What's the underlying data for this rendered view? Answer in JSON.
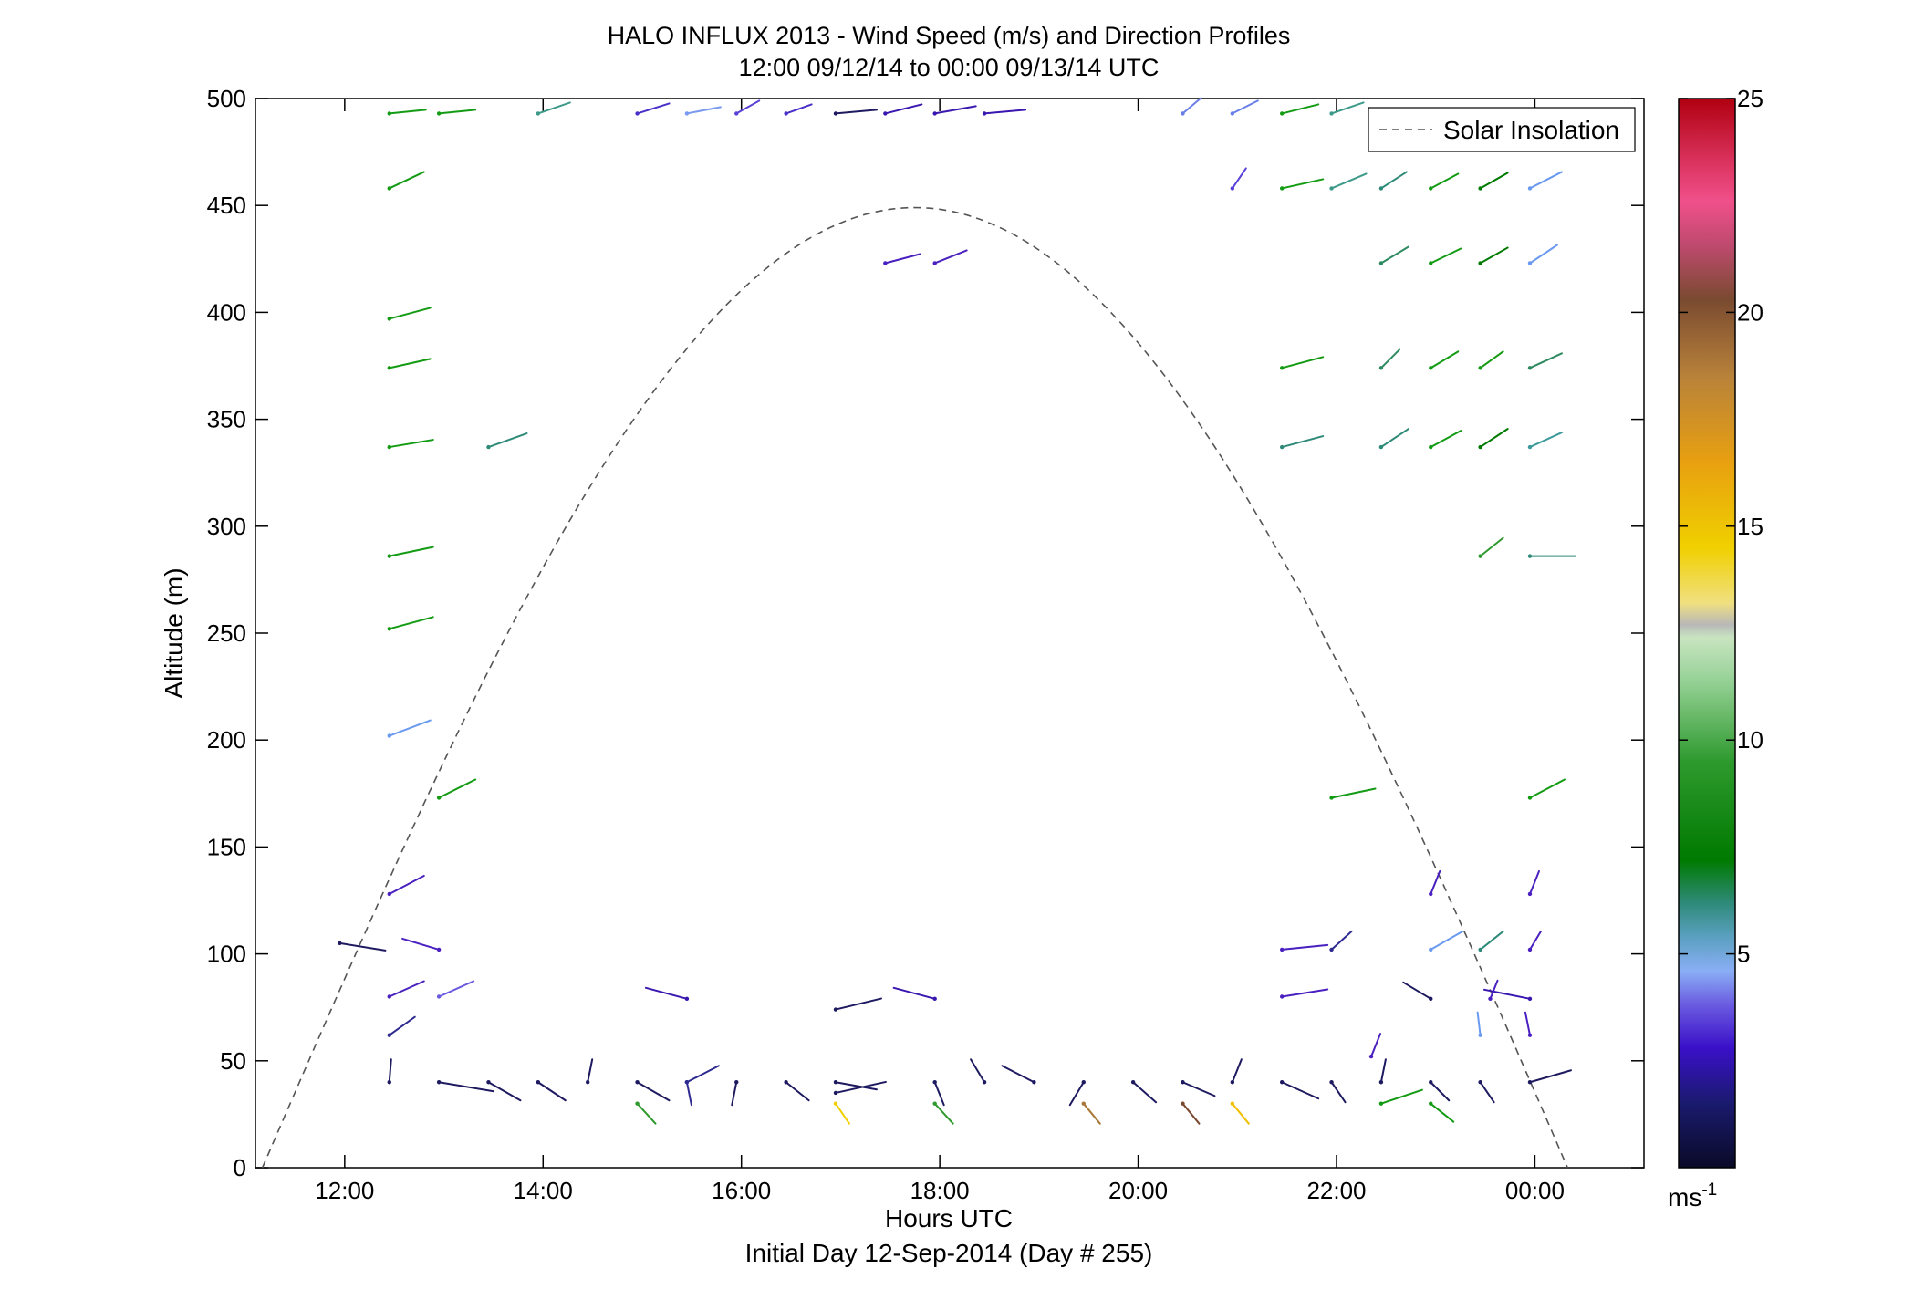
{
  "chart_data": {
    "type": "wind_barb_profile",
    "title": "HALO INFLUX 2013 - Wind Speed (m/s) and Direction Profiles",
    "subtitle": "12:00 09/12/14 to 00:00 09/13/14  UTC",
    "xlabel": "Hours UTC",
    "xlabel2": "Initial Day 12-Sep-2014 (Day # 255)",
    "ylabel": "Altitude (m)",
    "xlim": [
      11.1,
      25.1
    ],
    "ylim": [
      0,
      500
    ],
    "x_ticks": [
      {
        "value": 12,
        "label": "12:00"
      },
      {
        "value": 14,
        "label": "14:00"
      },
      {
        "value": 16,
        "label": "16:00"
      },
      {
        "value": 18,
        "label": "18:00"
      },
      {
        "value": 20,
        "label": "20:00"
      },
      {
        "value": 22,
        "label": "22:00"
      },
      {
        "value": 24,
        "label": "00:00"
      }
    ],
    "y_ticks": [
      {
        "value": 0,
        "label": "0"
      },
      {
        "value": 50,
        "label": "50"
      },
      {
        "value": 100,
        "label": "100"
      },
      {
        "value": 150,
        "label": "150"
      },
      {
        "value": 200,
        "label": "200"
      },
      {
        "value": 250,
        "label": "250"
      },
      {
        "value": 300,
        "label": "300"
      },
      {
        "value": 350,
        "label": "350"
      },
      {
        "value": 400,
        "label": "400"
      },
      {
        "value": 450,
        "label": "450"
      },
      {
        "value": 500,
        "label": "500"
      }
    ],
    "legend": {
      "label": "Solar Insolation",
      "position": "top-right"
    },
    "solar_insolation": {
      "start_hour": 11.17,
      "end_hour": 24.33,
      "peak_altitude": 449,
      "style": "dashed",
      "color": "#555555"
    },
    "colorbar": {
      "min": 0,
      "max": 25,
      "ticks": [
        {
          "value": 5,
          "label": "5"
        },
        {
          "value": 10,
          "label": "10"
        },
        {
          "value": 15,
          "label": "15"
        },
        {
          "value": 20,
          "label": "20"
        },
        {
          "value": 25,
          "label": "25"
        }
      ],
      "unit_label": "ms",
      "unit_exponent": "-1",
      "stops": [
        {
          "v": 0,
          "c": "#0a0a28"
        },
        {
          "v": 1.5,
          "c": "#1a1a6e"
        },
        {
          "v": 2.8,
          "c": "#3a10c8"
        },
        {
          "v": 3.8,
          "c": "#6a5ae0"
        },
        {
          "v": 4.6,
          "c": "#8aaef5"
        },
        {
          "v": 5.4,
          "c": "#5aa0c0"
        },
        {
          "v": 6.2,
          "c": "#2e8a78"
        },
        {
          "v": 7.2,
          "c": "#007a00"
        },
        {
          "v": 9.5,
          "c": "#2e9a2e"
        },
        {
          "v": 11.5,
          "c": "#9cd49c"
        },
        {
          "v": 12.4,
          "c": "#c8e4c0"
        },
        {
          "v": 12.7,
          "c": "#b8b8b8"
        },
        {
          "v": 13.2,
          "c": "#f0e080"
        },
        {
          "v": 14.5,
          "c": "#f0d000"
        },
        {
          "v": 16.5,
          "c": "#e8a010"
        },
        {
          "v": 18.5,
          "c": "#b8823a"
        },
        {
          "v": 20.3,
          "c": "#7a4a30"
        },
        {
          "v": 21.6,
          "c": "#c04a70"
        },
        {
          "v": 22.6,
          "c": "#f0508a"
        },
        {
          "v": 23.6,
          "c": "#d8305a"
        },
        {
          "v": 25,
          "c": "#b00010"
        }
      ]
    },
    "barbs": [
      {
        "t": 12.45,
        "alt": 493,
        "dx": 40,
        "dy": -4,
        "c": "#139b13"
      },
      {
        "t": 12.95,
        "alt": 493,
        "dx": 40,
        "dy": -4,
        "c": "#139b13"
      },
      {
        "t": 13.95,
        "alt": 493,
        "dx": 35,
        "dy": -12,
        "c": "#3d9a8a"
      },
      {
        "t": 14.95,
        "alt": 493,
        "dx": 35,
        "dy": -11,
        "c": "#4a30c8"
      },
      {
        "t": 15.45,
        "alt": 493,
        "dx": 37,
        "dy": -7,
        "c": "#7a9af0"
      },
      {
        "t": 15.95,
        "alt": 493,
        "dx": 25,
        "dy": -14,
        "c": "#5a40d8"
      },
      {
        "t": 16.45,
        "alt": 493,
        "dx": 28,
        "dy": -10,
        "c": "#4a30c8"
      },
      {
        "t": 16.95,
        "alt": 493,
        "dx": 45,
        "dy": -4,
        "c": "#1e1a60"
      },
      {
        "t": 17.45,
        "alt": 493,
        "dx": 40,
        "dy": -10,
        "c": "#3a18b0"
      },
      {
        "t": 17.95,
        "alt": 493,
        "dx": 45,
        "dy": -8,
        "c": "#3a18b0"
      },
      {
        "t": 18.45,
        "alt": 493,
        "dx": 45,
        "dy": -4,
        "c": "#3a18b0"
      },
      {
        "t": 20.45,
        "alt": 493,
        "dx": 20,
        "dy": -17,
        "c": "#6a7ee8"
      },
      {
        "t": 20.95,
        "alt": 493,
        "dx": 28,
        "dy": -14,
        "c": "#6a7ee8"
      },
      {
        "t": 21.45,
        "alt": 493,
        "dx": 40,
        "dy": -10,
        "c": "#139b13"
      },
      {
        "t": 21.95,
        "alt": 493,
        "dx": 35,
        "dy": -12,
        "c": "#3d9a8a"
      },
      {
        "t": 12.45,
        "alt": 458,
        "dx": 38,
        "dy": -18,
        "c": "#139b13"
      },
      {
        "t": 20.95,
        "alt": 458,
        "dx": 15,
        "dy": -22,
        "c": "#5a40d8"
      },
      {
        "t": 21.45,
        "alt": 458,
        "dx": 45,
        "dy": -10,
        "c": "#139b13"
      },
      {
        "t": 21.95,
        "alt": 458,
        "dx": 38,
        "dy": -16,
        "c": "#3d9a8a"
      },
      {
        "t": 22.45,
        "alt": 458,
        "dx": 28,
        "dy": -18,
        "c": "#2e8a78"
      },
      {
        "t": 22.95,
        "alt": 458,
        "dx": 30,
        "dy": -16,
        "c": "#139b13"
      },
      {
        "t": 23.45,
        "alt": 458,
        "dx": 30,
        "dy": -17,
        "c": "#007a00"
      },
      {
        "t": 23.95,
        "alt": 458,
        "dx": 35,
        "dy": -18,
        "c": "#6a9af0"
      },
      {
        "t": 17.45,
        "alt": 423,
        "dx": 38,
        "dy": -10,
        "c": "#4a20c0"
      },
      {
        "t": 17.95,
        "alt": 423,
        "dx": 35,
        "dy": -14,
        "c": "#4a20c0"
      },
      {
        "t": 22.45,
        "alt": 423,
        "dx": 30,
        "dy": -18,
        "c": "#2e8a60"
      },
      {
        "t": 22.95,
        "alt": 423,
        "dx": 33,
        "dy": -16,
        "c": "#139b13"
      },
      {
        "t": 23.45,
        "alt": 423,
        "dx": 30,
        "dy": -17,
        "c": "#007a00"
      },
      {
        "t": 23.95,
        "alt": 423,
        "dx": 30,
        "dy": -20,
        "c": "#6a9af0"
      },
      {
        "t": 12.45,
        "alt": 397,
        "dx": 45,
        "dy": -12,
        "c": "#139b13"
      },
      {
        "t": 12.45,
        "alt": 374,
        "dx": 45,
        "dy": -10,
        "c": "#139b13"
      },
      {
        "t": 21.45,
        "alt": 374,
        "dx": 45,
        "dy": -12,
        "c": "#139b13"
      },
      {
        "t": 22.45,
        "alt": 374,
        "dx": 20,
        "dy": -20,
        "c": "#2e8a60"
      },
      {
        "t": 22.95,
        "alt": 374,
        "dx": 30,
        "dy": -18,
        "c": "#139b13"
      },
      {
        "t": 23.45,
        "alt": 374,
        "dx": 25,
        "dy": -18,
        "c": "#139b13"
      },
      {
        "t": 23.95,
        "alt": 374,
        "dx": 35,
        "dy": -16,
        "c": "#2e8a60"
      },
      {
        "t": 12.45,
        "alt": 337,
        "dx": 48,
        "dy": -8,
        "c": "#139b13"
      },
      {
        "t": 13.45,
        "alt": 337,
        "dx": 42,
        "dy": -15,
        "c": "#2e8a78"
      },
      {
        "t": 21.45,
        "alt": 337,
        "dx": 45,
        "dy": -12,
        "c": "#2e8a78"
      },
      {
        "t": 22.45,
        "alt": 337,
        "dx": 30,
        "dy": -20,
        "c": "#2e8a78"
      },
      {
        "t": 22.95,
        "alt": 337,
        "dx": 33,
        "dy": -18,
        "c": "#139b13"
      },
      {
        "t": 23.45,
        "alt": 337,
        "dx": 30,
        "dy": -20,
        "c": "#007a00"
      },
      {
        "t": 23.95,
        "alt": 337,
        "dx": 35,
        "dy": -16,
        "c": "#3d9a9a"
      },
      {
        "t": 12.45,
        "alt": 286,
        "dx": 48,
        "dy": -10,
        "c": "#139b13"
      },
      {
        "t": 23.45,
        "alt": 286,
        "dx": 25,
        "dy": -20,
        "c": "#2e9a2e"
      },
      {
        "t": 23.95,
        "alt": 286,
        "dx": 50,
        "dy": 0,
        "c": "#2e8a78"
      },
      {
        "t": 12.45,
        "alt": 252,
        "dx": 48,
        "dy": -13,
        "c": "#139b13"
      },
      {
        "t": 12.45,
        "alt": 202,
        "dx": 45,
        "dy": -17,
        "c": "#6a9af0"
      },
      {
        "t": 12.95,
        "alt": 173,
        "dx": 40,
        "dy": -20,
        "c": "#139b13"
      },
      {
        "t": 21.95,
        "alt": 173,
        "dx": 48,
        "dy": -10,
        "c": "#139b13"
      },
      {
        "t": 23.95,
        "alt": 173,
        "dx": 38,
        "dy": -20,
        "c": "#139b13"
      },
      {
        "t": 12.45,
        "alt": 128,
        "dx": 38,
        "dy": -20,
        "c": "#4a20c0"
      },
      {
        "t": 22.95,
        "alt": 128,
        "dx": 10,
        "dy": -25,
        "c": "#4a20c0"
      },
      {
        "t": 23.95,
        "alt": 128,
        "dx": 10,
        "dy": -25,
        "c": "#4a20c0"
      },
      {
        "t": 11.95,
        "alt": 105,
        "dx": 50,
        "dy": 8,
        "c": "#1e1a60"
      },
      {
        "t": 12.95,
        "alt": 102,
        "dx": -40,
        "dy": -12,
        "c": "#4a20c0"
      },
      {
        "t": 21.45,
        "alt": 102,
        "dx": 50,
        "dy": -5,
        "c": "#4a20c0"
      },
      {
        "t": 21.95,
        "alt": 102,
        "dx": 22,
        "dy": -20,
        "c": "#2e2a90"
      },
      {
        "t": 22.95,
        "alt": 102,
        "dx": 35,
        "dy": -20,
        "c": "#6a9af0"
      },
      {
        "t": 23.45,
        "alt": 102,
        "dx": 25,
        "dy": -20,
        "c": "#2e8a78"
      },
      {
        "t": 23.95,
        "alt": 102,
        "dx": 12,
        "dy": -20,
        "c": "#4a20c0"
      },
      {
        "t": 12.45,
        "alt": 80,
        "dx": 38,
        "dy": -17,
        "c": "#4a20c0"
      },
      {
        "t": 12.95,
        "alt": 80,
        "dx": 38,
        "dy": -17,
        "c": "#6a5ae0"
      },
      {
        "t": 15.45,
        "alt": 79,
        "dx": -45,
        "dy": -12,
        "c": "#3a18b0"
      },
      {
        "t": 16.95,
        "alt": 74,
        "dx": 50,
        "dy": -12,
        "c": "#1e1a60"
      },
      {
        "t": 17.95,
        "alt": 79,
        "dx": -45,
        "dy": -12,
        "c": "#3a18b0"
      },
      {
        "t": 21.45,
        "alt": 80,
        "dx": 50,
        "dy": -8,
        "c": "#4a20c0"
      },
      {
        "t": 22.95,
        "alt": 79,
        "dx": -30,
        "dy": -18,
        "c": "#1e1a60"
      },
      {
        "t": 23.95,
        "alt": 79,
        "dx": -50,
        "dy": -10,
        "c": "#3a18b0"
      },
      {
        "t": 23.55,
        "alt": 79,
        "dx": 8,
        "dy": -20,
        "c": "#4a20c0"
      },
      {
        "t": 12.45,
        "alt": 62,
        "dx": 28,
        "dy": -20,
        "c": "#2e2a90"
      },
      {
        "t": 23.45,
        "alt": 62,
        "dx": -3,
        "dy": -25,
        "c": "#6a9af0"
      },
      {
        "t": 23.95,
        "alt": 62,
        "dx": -5,
        "dy": -25,
        "c": "#4a20c0"
      },
      {
        "t": 22.35,
        "alt": 52,
        "dx": 10,
        "dy": -25,
        "c": "#4a20c0"
      },
      {
        "t": 12.45,
        "alt": 40,
        "dx": 2,
        "dy": -25,
        "c": "#1e1a60"
      },
      {
        "t": 12.95,
        "alt": 40,
        "dx": 60,
        "dy": 10,
        "c": "#1e1a60"
      },
      {
        "t": 13.45,
        "alt": 40,
        "dx": 35,
        "dy": 20,
        "c": "#1e1a60"
      },
      {
        "t": 13.95,
        "alt": 40,
        "dx": 30,
        "dy": 20,
        "c": "#1e1a60"
      },
      {
        "t": 14.45,
        "alt": 40,
        "dx": 5,
        "dy": -25,
        "c": "#1e1a60"
      },
      {
        "t": 14.95,
        "alt": 40,
        "dx": 35,
        "dy": 20,
        "c": "#1e1a60"
      },
      {
        "t": 15.45,
        "alt": 40,
        "dx": 5,
        "dy": 25,
        "c": "#2e2a90"
      },
      {
        "t": 15.45,
        "alt": 40,
        "dx": 35,
        "dy": -18,
        "c": "#2e2a90"
      },
      {
        "t": 15.95,
        "alt": 40,
        "dx": -5,
        "dy": 25,
        "c": "#1e1a60"
      },
      {
        "t": 16.45,
        "alt": 40,
        "dx": 25,
        "dy": 20,
        "c": "#1e1a60"
      },
      {
        "t": 16.95,
        "alt": 40,
        "dx": 45,
        "dy": 8,
        "c": "#1e1a60"
      },
      {
        "t": 16.95,
        "alt": 35,
        "dx": 55,
        "dy": -12,
        "c": "#1e1a60"
      },
      {
        "t": 17.95,
        "alt": 40,
        "dx": 10,
        "dy": 25,
        "c": "#1e1a60"
      },
      {
        "t": 18.45,
        "alt": 40,
        "dx": -15,
        "dy": -25,
        "c": "#1e1a60"
      },
      {
        "t": 18.95,
        "alt": 40,
        "dx": -35,
        "dy": -18,
        "c": "#1e1a60"
      },
      {
        "t": 19.45,
        "alt": 40,
        "dx": -15,
        "dy": 25,
        "c": "#1e1a60"
      },
      {
        "t": 19.95,
        "alt": 40,
        "dx": 25,
        "dy": 22,
        "c": "#1e1a60"
      },
      {
        "t": 20.45,
        "alt": 40,
        "dx": 35,
        "dy": 15,
        "c": "#1e1a60"
      },
      {
        "t": 20.95,
        "alt": 40,
        "dx": 10,
        "dy": -25,
        "c": "#1e1a60"
      },
      {
        "t": 21.45,
        "alt": 40,
        "dx": 40,
        "dy": 18,
        "c": "#1e1a60"
      },
      {
        "t": 21.95,
        "alt": 40,
        "dx": 15,
        "dy": 22,
        "c": "#1e1a60"
      },
      {
        "t": 22.45,
        "alt": 40,
        "dx": 5,
        "dy": -25,
        "c": "#1e1a60"
      },
      {
        "t": 22.95,
        "alt": 40,
        "dx": 20,
        "dy": 20,
        "c": "#1e1a60"
      },
      {
        "t": 23.45,
        "alt": 40,
        "dx": 15,
        "dy": 22,
        "c": "#1e1a60"
      },
      {
        "t": 23.95,
        "alt": 40,
        "dx": 45,
        "dy": -13,
        "c": "#1e1a60"
      },
      {
        "t": 14.95,
        "alt": 30,
        "dx": 20,
        "dy": 22,
        "c": "#2e9a2e"
      },
      {
        "t": 16.95,
        "alt": 30,
        "dx": 15,
        "dy": 22,
        "c": "#f0d000"
      },
      {
        "t": 17.95,
        "alt": 30,
        "dx": 20,
        "dy": 22,
        "c": "#2e9a2e"
      },
      {
        "t": 19.45,
        "alt": 30,
        "dx": 18,
        "dy": 22,
        "c": "#a87838"
      },
      {
        "t": 20.45,
        "alt": 30,
        "dx": 18,
        "dy": 22,
        "c": "#7a4a30"
      },
      {
        "t": 20.95,
        "alt": 30,
        "dx": 18,
        "dy": 22,
        "c": "#f0c000"
      },
      {
        "t": 22.45,
        "alt": 30,
        "dx": 45,
        "dy": -15,
        "c": "#139b13"
      },
      {
        "t": 22.95,
        "alt": 30,
        "dx": 25,
        "dy": 20,
        "c": "#139b13"
      }
    ]
  }
}
